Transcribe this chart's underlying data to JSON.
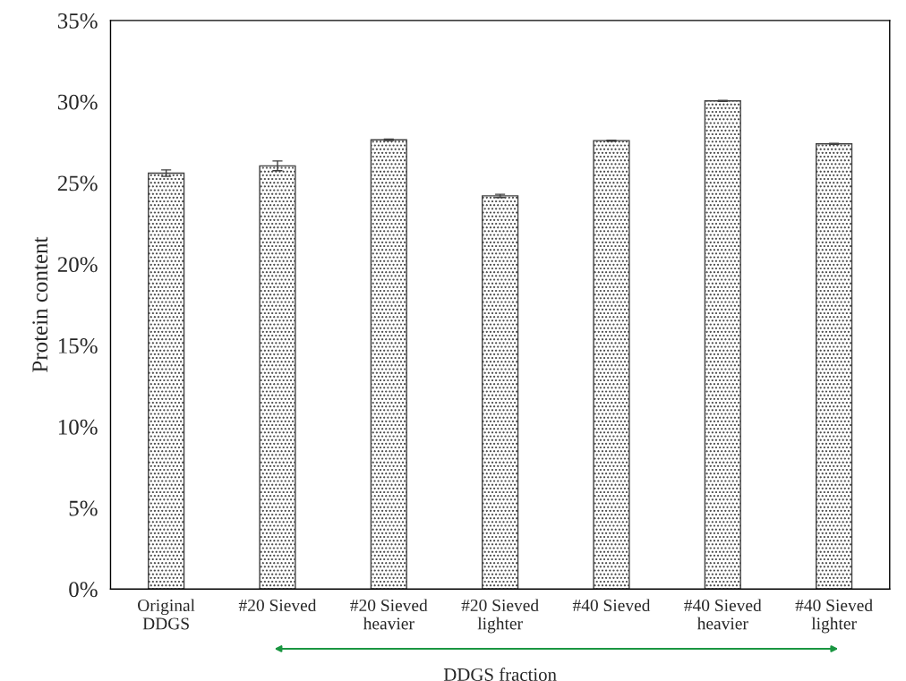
{
  "chart_data": {
    "type": "bar",
    "xlabel": "DDGS fraction",
    "ylabel": "Protein content",
    "categories": [
      "Original\nDDGS",
      "#20 Sieved",
      "#20 Sieved\nheavier",
      "#20 Sieved\nlighter",
      "#40 Sieved",
      "#40 Sieved\nheavier",
      "#40 Sieved\nlighter"
    ],
    "values": [
      25.6,
      26.05,
      27.65,
      24.2,
      27.6,
      30.05,
      27.4
    ],
    "errors": [
      0.2,
      0.3,
      0.05,
      0.1,
      0.03,
      0.03,
      0.03
    ],
    "color": "#404040",
    "ylim": [
      0,
      35
    ],
    "yticks": [
      {
        "value": 0,
        "label": "0%"
      },
      {
        "value": 5,
        "label": "5%"
      },
      {
        "value": 10,
        "label": "10%"
      },
      {
        "value": 15,
        "label": "15%"
      },
      {
        "value": 20,
        "label": "20%"
      },
      {
        "value": 25,
        "label": "25%"
      },
      {
        "value": 30,
        "label": "30%"
      },
      {
        "value": 35,
        "label": "35%"
      }
    ],
    "grid": false,
    "legend": false
  }
}
